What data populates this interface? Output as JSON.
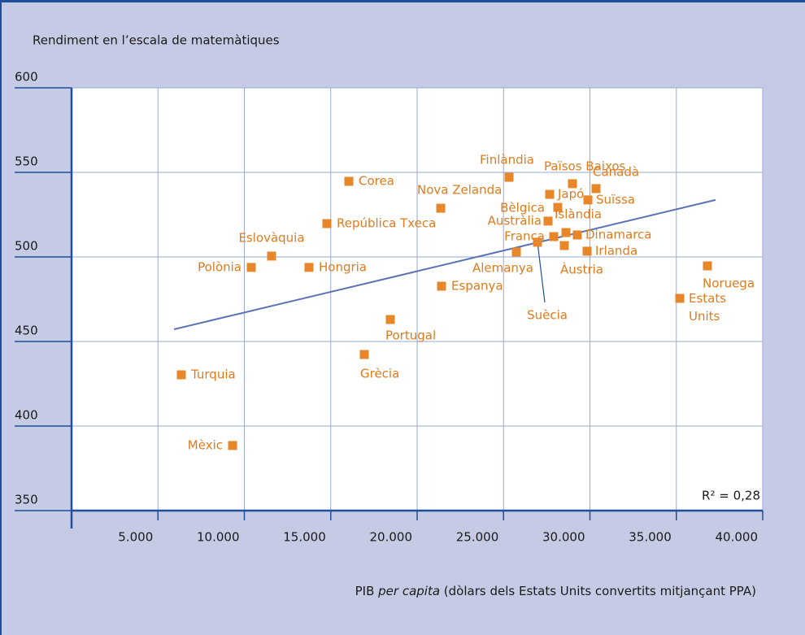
{
  "chart_data": {
    "type": "scatter",
    "title": "Rendiment en l’escala de matemàtiques",
    "x_label": [
      "PIB ",
      "per capita",
      " (dòlars dels Estats Units convertits mitjançant PPA)"
    ],
    "annotation": "R² = 0,28",
    "xlim": [
      0,
      40000
    ],
    "ylim": [
      350,
      600
    ],
    "xticks": [
      {
        "value": 5000,
        "label": "5.000"
      },
      {
        "value": 10000,
        "label": "10.000"
      },
      {
        "value": 15000,
        "label": "15.000"
      },
      {
        "value": 20000,
        "label": "20.000"
      },
      {
        "value": 25000,
        "label": "25.000"
      },
      {
        "value": 30000,
        "label": "30.000"
      },
      {
        "value": 35000,
        "label": "35.000"
      },
      {
        "value": 40000,
        "label": "40.000"
      }
    ],
    "yticks": [
      350,
      400,
      450,
      500,
      550,
      600
    ],
    "grid": true,
    "color": "#e8872a",
    "trend_color": "#5b73b5",
    "labels": [
      "Corea",
      "República Txeca",
      "Eslovàquia",
      "Polònia",
      "Hongria",
      "Turquia",
      "Mèxic",
      "Grècia",
      "Portugal",
      "Espanya",
      "Nova Zelanda",
      "Finlàndia",
      "Japó",
      "Països Baixos",
      "Canadà",
      "Suïssa",
      "Bèlgica",
      "Austràlia",
      "Islàndia",
      "Dinamarca",
      "França",
      "Suècia",
      "Alemanya",
      "Irlanda",
      "Àustria",
      "Noruega",
      "Estats Units"
    ],
    "x": [
      16047,
      14776,
      11576,
      10400,
      13741,
      6353,
      9318,
      16941,
      18447,
      21412,
      21365,
      25318,
      27671,
      28988,
      30353,
      29882,
      28141,
      27576,
      28612,
      29271,
      27906,
      26965,
      25741,
      29835,
      28518,
      36800,
      35200
    ],
    "y": [
      544.7,
      519.7,
      500.5,
      493.8,
      493.8,
      430.3,
      388.5,
      442.3,
      463,
      482.7,
      528.8,
      547.1,
      537,
      543.3,
      540.4,
      533.7,
      529.3,
      521.2,
      514.4,
      513,
      512,
      508.7,
      502.9,
      503.4,
      506.7,
      494.7,
      475.5
    ],
    "trendline": {
      "x": [
        5929,
        37271
      ],
      "y": [
        457.2,
        533.7
      ]
    }
  }
}
